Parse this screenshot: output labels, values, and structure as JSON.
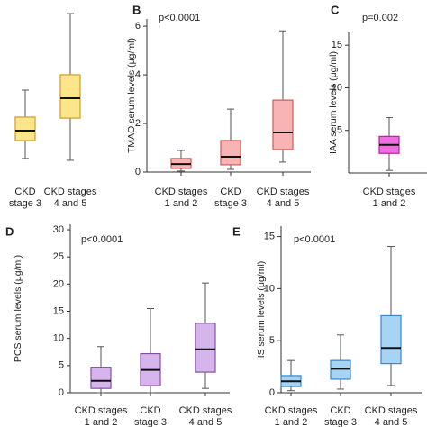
{
  "chart_data": [
    {
      "type": "box",
      "categories": [
        [
          "CKD",
          "stage 3"
        ],
        [
          "CKD stages",
          "4 and 5"
        ]
      ],
      "color": "#fde68a",
      "stroke": "#d19a2a",
      "ylim": [
        0,
        10
      ],
      "values": [
        {
          "low": 1.08,
          "q1": 2.15,
          "median": 2.74,
          "q3": 3.55,
          "high": 5.16
        },
        {
          "low": 0.97,
          "q1": 3.49,
          "median": 4.68,
          "q3": 6.08,
          "high": 9.73
        }
      ]
    },
    {
      "type": "box",
      "panel": "B",
      "title": "p<0.0001",
      "y_label": "TMAO serum levels (μg/ml)",
      "categories": [
        [
          "CKD stages",
          "1 and 2"
        ],
        [
          "CKD",
          "stage 3"
        ],
        [
          "CKD stages",
          "4 and 5"
        ]
      ],
      "color": "#f8b4b4",
      "stroke": "#d05a5a",
      "ylim": [
        0,
        6.3
      ],
      "yticks": [
        0,
        2,
        4,
        6
      ],
      "values": [
        {
          "low": 0.04,
          "q1": 0.15,
          "median": 0.33,
          "q3": 0.56,
          "high": 0.89
        },
        {
          "low": 0.11,
          "q1": 0.3,
          "median": 0.63,
          "q3": 1.3,
          "high": 2.59
        },
        {
          "low": 0.41,
          "q1": 0.93,
          "median": 1.63,
          "q3": 2.96,
          "high": 5.81
        }
      ]
    },
    {
      "type": "box",
      "panel": "C",
      "title": "p=0.002",
      "y_label": "IAA serum levels (μg/ml)",
      "categories": [
        [
          "CKD stages",
          "1 and 2"
        ]
      ],
      "color": "#f06ce0",
      "stroke": "#b8209f",
      "ylim": [
        0,
        16.5
      ],
      "yticks": [
        5,
        10,
        15
      ],
      "values": [
        {
          "low": 0.3,
          "q1": 2.3,
          "median": 3.3,
          "q3": 4.3,
          "high": 6.5
        }
      ]
    },
    {
      "type": "box",
      "panel": "D",
      "title": "p<0.0001",
      "y_label": "PCS serum levels (μg/ml)",
      "categories": [
        [
          "CKD stages",
          "1 and 2"
        ],
        [
          "CKD",
          "stage 3"
        ],
        [
          "CKD stages",
          "4 and 5"
        ]
      ],
      "color": "#d6b4ec",
      "stroke": "#82509c",
      "ylim": [
        0,
        31
      ],
      "yticks": [
        0,
        5,
        10,
        15,
        20,
        25,
        30
      ],
      "values": [
        {
          "low": 0,
          "q1": 0.8,
          "median": 2.2,
          "q3": 4.7,
          "high": 8.5
        },
        {
          "low": 0,
          "q1": 1.3,
          "median": 4.2,
          "q3": 7.2,
          "high": 15.5
        },
        {
          "low": 0.8,
          "q1": 3.8,
          "median": 8.0,
          "q3": 12.8,
          "high": 20.2
        }
      ]
    },
    {
      "type": "box",
      "panel": "E",
      "title": "p<0.0001",
      "y_label": "IS serum levels (μg/ml)",
      "categories": [
        [
          "CKD stages",
          "1 and 2"
        ],
        [
          "CKD",
          "stage 3"
        ],
        [
          "CKD stages",
          "4 and 5"
        ]
      ],
      "color": "#a8d4f4",
      "stroke": "#3a86c8",
      "ylim": [
        0,
        16
      ],
      "yticks": [
        0,
        5,
        10,
        15
      ],
      "values": [
        {
          "low": 0.2,
          "q1": 0.6,
          "median": 1.1,
          "q3": 1.65,
          "high": 3.1
        },
        {
          "low": 0.35,
          "q1": 1.3,
          "median": 2.3,
          "q3": 3.1,
          "high": 5.55
        },
        {
          "low": 0.7,
          "q1": 2.8,
          "median": 4.3,
          "q3": 7.4,
          "high": 14.05
        }
      ]
    }
  ]
}
